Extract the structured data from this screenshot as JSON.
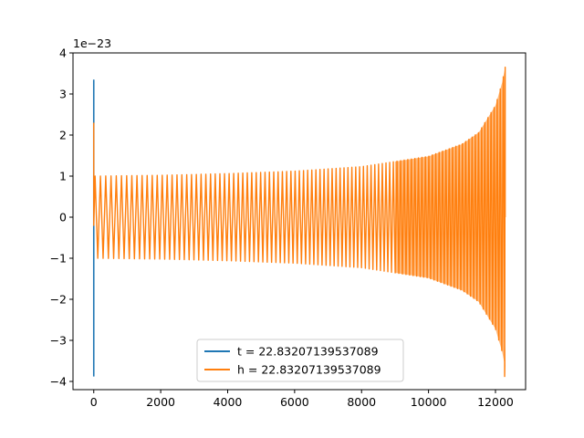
{
  "chart_data": {
    "type": "line",
    "title": "",
    "xlabel": "",
    "ylabel": "",
    "y_offset_label": "1e−23",
    "xlim": [
      -620,
      12900
    ],
    "ylim": [
      -4.2,
      4.0
    ],
    "x_ticks": [
      0,
      2000,
      4000,
      6000,
      8000,
      10000,
      12000
    ],
    "x_tick_labels": [
      "0",
      "2000",
      "4000",
      "6000",
      "8000",
      "10000",
      "12000"
    ],
    "y_ticks": [
      -4,
      -3,
      -2,
      -1,
      0,
      1,
      2,
      3,
      4
    ],
    "y_tick_labels": [
      "−4",
      "−3",
      "−2",
      "−1",
      "0",
      "1",
      "2",
      "3",
      "4"
    ],
    "grid": false,
    "legend_position": "lower center",
    "series": [
      {
        "name": "t = 22.83207139537089",
        "color": "#1f77b4",
        "values": [
          {
            "x": 0,
            "y": 0
          },
          {
            "x": 0,
            "y": 3.35
          },
          {
            "x": 0,
            "y": -3.88
          },
          {
            "x": 0,
            "y": 0
          }
        ]
      },
      {
        "name": "h = 22.83207139537089",
        "color": "#ff7f0e",
        "envelope": [
          {
            "x": 0,
            "amplitude": 1.0
          },
          {
            "x": 2000,
            "amplitude": 1.02
          },
          {
            "x": 4000,
            "amplitude": 1.06
          },
          {
            "x": 6000,
            "amplitude": 1.12
          },
          {
            "x": 8000,
            "amplitude": 1.23
          },
          {
            "x": 10000,
            "amplitude": 1.48
          },
          {
            "x": 11000,
            "amplitude": 1.78
          },
          {
            "x": 11500,
            "amplitude": 2.06
          },
          {
            "x": 12000,
            "amplitude": 2.72
          },
          {
            "x": 12200,
            "amplitude": 3.28
          },
          {
            "x": 12290,
            "amplitude": 3.65
          }
        ],
        "spike_at_start": 2.3,
        "final_min": -3.88,
        "final_max": 3.65
      }
    ]
  }
}
